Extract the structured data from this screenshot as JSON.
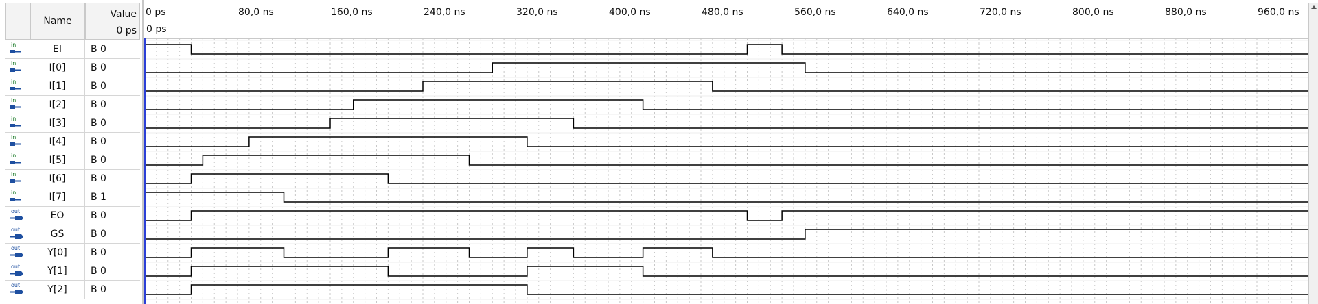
{
  "header": {
    "name": "Name",
    "value": "Value",
    "value_time": "0 ps"
  },
  "time_axis": {
    "labels": [
      "0 ps",
      "80,0 ns",
      "160,0 ns",
      "240,0 ns",
      "320,0 ns",
      "400,0 ns",
      "480,0 ns",
      "560,0 ns",
      "640,0 ns",
      "720,0 ns",
      "800,0 ns",
      "880,0 ns",
      "960,0 ns"
    ],
    "cursor_label": "0 ps",
    "end_ns": 1000
  },
  "colors": {
    "wave": "#000000",
    "input_pin": "#1e7d2b",
    "output_pin": "#1e4fa0",
    "cursor": "#2b3fd6",
    "grid": "#c8c8c8"
  },
  "signals": [
    {
      "dir": "in",
      "label": "in",
      "name": "EI",
      "value": "B 0",
      "transitions": [
        0,
        40,
        520,
        550
      ],
      "init": 0,
      "icon": "input-pin-icon"
    },
    {
      "dir": "in",
      "label": "in",
      "name": "I[0]",
      "value": "B 0",
      "transitions": [
        300,
        570
      ],
      "init": 0,
      "icon": "input-pin-icon"
    },
    {
      "dir": "in",
      "label": "in",
      "name": "I[1]",
      "value": "B 0",
      "transitions": [
        240,
        490
      ],
      "init": 0,
      "icon": "input-pin-icon"
    },
    {
      "dir": "in",
      "label": "in",
      "name": "I[2]",
      "value": "B 0",
      "transitions": [
        180,
        430
      ],
      "init": 0,
      "icon": "input-pin-icon"
    },
    {
      "dir": "in",
      "label": "in",
      "name": "I[3]",
      "value": "B 0",
      "transitions": [
        160,
        370
      ],
      "init": 0,
      "icon": "input-pin-icon"
    },
    {
      "dir": "in",
      "label": "in",
      "name": "I[4]",
      "value": "B 0",
      "transitions": [
        90,
        330
      ],
      "init": 0,
      "icon": "input-pin-icon"
    },
    {
      "dir": "in",
      "label": "in",
      "name": "I[5]",
      "value": "B 0",
      "transitions": [
        50,
        280
      ],
      "init": 0,
      "icon": "input-pin-icon"
    },
    {
      "dir": "in",
      "label": "in",
      "name": "I[6]",
      "value": "B 0",
      "transitions": [
        40,
        210
      ],
      "init": 0,
      "icon": "input-pin-icon"
    },
    {
      "dir": "in",
      "label": "in",
      "name": "I[7]",
      "value": "B 1",
      "transitions": [
        120
      ],
      "init": 1,
      "icon": "input-pin-icon"
    },
    {
      "dir": "out",
      "label": "out",
      "name": "EO",
      "value": "B 0",
      "transitions": [
        40,
        520,
        550
      ],
      "init": 0,
      "icon": "output-pin-icon"
    },
    {
      "dir": "out",
      "label": "out",
      "name": "GS",
      "value": "B 0",
      "transitions": [
        570
      ],
      "init": 0,
      "icon": "output-pin-icon"
    },
    {
      "dir": "out",
      "label": "out",
      "name": "Y[0]",
      "value": "B 0",
      "transitions": [
        40,
        120,
        210,
        280,
        330,
        370,
        430,
        490
      ],
      "init": 0,
      "icon": "output-pin-icon"
    },
    {
      "dir": "out",
      "label": "out",
      "name": "Y[1]",
      "value": "B 0",
      "transitions": [
        40,
        210,
        330,
        430
      ],
      "init": 0,
      "icon": "output-pin-icon"
    },
    {
      "dir": "out",
      "label": "out",
      "name": "Y[2]",
      "value": "B 0",
      "transitions": [
        40,
        330
      ],
      "init": 0,
      "icon": "output-pin-icon"
    }
  ]
}
